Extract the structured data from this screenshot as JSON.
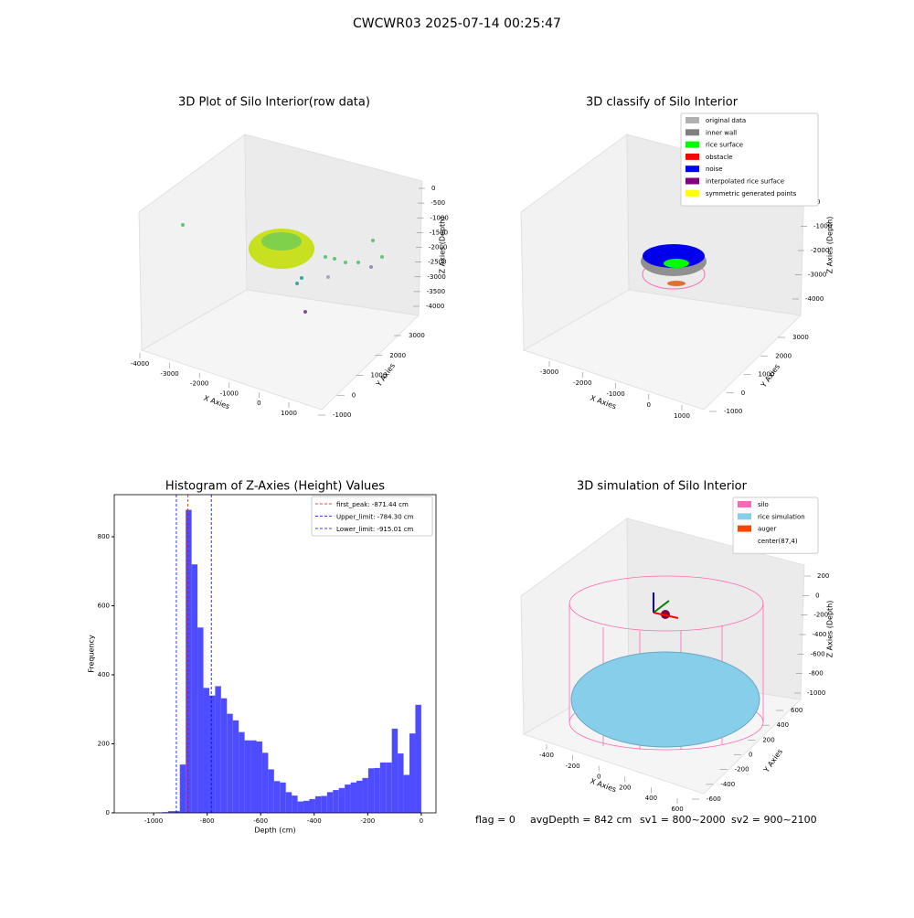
{
  "suptitle": "CWCWR03 2025-07-14 00:25:47",
  "status": [
    "flag = 0",
    "avgDepth = 842 cm",
    "sv1 = 800~2000",
    "sv2 = 900~2100"
  ],
  "chart_data": [
    {
      "type": "scatter3d",
      "title": "3D Plot of Silo Interior(row data)",
      "xlabel": "X Axies",
      "ylabel": "Y Axies",
      "zlabel": "Z Axies (Depth)",
      "xticks": [
        -4000,
        -3000,
        -2000,
        -1000,
        0,
        1000
      ],
      "yticks": [
        -1000,
        0,
        1000,
        2000,
        3000
      ],
      "zticks": [
        0,
        -500,
        -1000,
        -1500,
        -2000,
        -2500,
        -3000,
        -3500,
        -4000
      ]
    },
    {
      "type": "scatter3d",
      "title": "3D classify of Silo Interior",
      "xlabel": "X Axies",
      "ylabel": "Y Axies",
      "zlabel": "Z Axies (Depth)",
      "xticks": [
        -3000,
        -2000,
        -1000,
        0,
        1000
      ],
      "yticks": [
        -1000,
        0,
        1000,
        2000,
        3000
      ],
      "zticks": [
        0,
        -1000,
        -2000,
        -3000,
        -4000
      ],
      "legend": [
        {
          "name": "original data",
          "color": "#b0b0b0"
        },
        {
          "name": "inner wall",
          "color": "#808080"
        },
        {
          "name": "rice surface",
          "color": "#00ff00"
        },
        {
          "name": "obstacle",
          "color": "#ff0000"
        },
        {
          "name": "noise",
          "color": "#0000ff"
        },
        {
          "name": "interpolated rice surface",
          "color": "#800080"
        },
        {
          "name": "symmetric generated points",
          "color": "#ffff00"
        }
      ]
    },
    {
      "type": "histogram",
      "title": "Histogram of Z-Axies (Height) Values",
      "xlabel": "Depth (cm)",
      "ylabel": "Frequency",
      "color": "#4d4dff",
      "bins": [
        -1100,
        -1078,
        -1056,
        -1034,
        -1012,
        -990,
        -968,
        -946,
        -924,
        -902,
        -880,
        -858,
        -836,
        -814,
        -792,
        -770,
        -748,
        -726,
        -704,
        -682,
        -660,
        -638,
        -616,
        -594,
        -572,
        -550,
        -528,
        -506,
        -484,
        -462,
        -440,
        -418,
        -396,
        -374,
        -352,
        -330,
        -308,
        -286,
        -264,
        -242,
        -220,
        -198,
        -176,
        -154,
        -132,
        -110,
        -88,
        -66,
        -44,
        -22,
        0
      ],
      "values": [
        0,
        0,
        0,
        0,
        0,
        1,
        2,
        5,
        5,
        140,
        878,
        720,
        537,
        362,
        340,
        367,
        332,
        287,
        268,
        234,
        210,
        210,
        207,
        174,
        126,
        92,
        88,
        60,
        50,
        33,
        35,
        40,
        48,
        49,
        60,
        66,
        72,
        82,
        88,
        93,
        101,
        129,
        130,
        146,
        146,
        244,
        172,
        110,
        230,
        313
      ],
      "xlim": [
        -1147,
        55
      ],
      "ylim": [
        0,
        922
      ],
      "xticks": [
        -1000,
        -800,
        -600,
        -400,
        -200,
        0
      ],
      "yticks": [
        0,
        200,
        400,
        600,
        800
      ],
      "vlines": [
        {
          "name": "first_peak: -871.44 cm",
          "value": -871.44,
          "color": "#ff0000"
        },
        {
          "name": "Upper_limit: -784.30 cm",
          "value": -784.3,
          "color": "#0000ff"
        },
        {
          "name": "Lower_limit: -915.01 cm",
          "value": -915.01,
          "color": "#0000ff"
        }
      ]
    },
    {
      "type": "surface3d",
      "title": "3D simulation of Silo Interior",
      "xlabel": "X Axies",
      "ylabel": "Y Axies",
      "zlabel": "Z Axies (Depth)",
      "xticks": [
        -400,
        -200,
        0,
        200,
        400,
        600
      ],
      "yticks": [
        -600,
        -400,
        -200,
        0,
        200,
        400,
        600
      ],
      "zticks": [
        200,
        0,
        -200,
        -400,
        -600,
        -800,
        -1000
      ],
      "legend": [
        {
          "name": "silo",
          "color": "#ff69b4"
        },
        {
          "name": "rice simulation",
          "color": "#87ceeb"
        },
        {
          "name": "auger",
          "color": "#ff4500"
        },
        {
          "name": "center(87,4)",
          "color": "#ffffff"
        }
      ]
    }
  ]
}
